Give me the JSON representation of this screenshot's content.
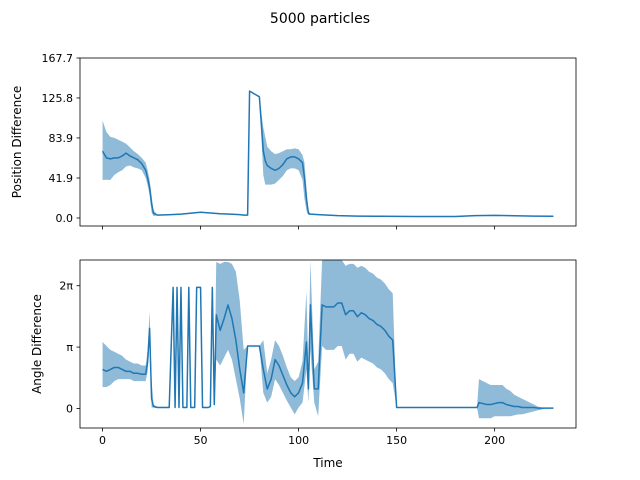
{
  "title": "5000 particles",
  "colors": {
    "line": "#1f77b4",
    "band": "#1f77b4",
    "axes": "#000000"
  },
  "chart_data": [
    {
      "type": "line",
      "name": "position-difference-plot",
      "xlabel": "",
      "ylabel": "Position Difference",
      "xlim": [
        -11.5,
        241.5
      ],
      "ylim": [
        -8.4,
        167.7
      ],
      "x_ticks": [
        0,
        50,
        100,
        150,
        200
      ],
      "y_ticks": [
        0.0,
        41.9,
        83.9,
        125.8,
        167.7
      ],
      "y_tick_labels": [
        "0.0",
        "41.9",
        "83.9",
        "125.8",
        "167.7"
      ],
      "show_x_tick_labels": false,
      "series": [
        {
          "x": [
            0,
            2,
            4,
            6,
            8,
            10,
            12,
            14,
            16,
            18,
            20,
            22,
            23,
            24,
            25,
            26,
            28,
            35,
            40,
            50,
            60,
            65,
            70,
            72,
            74,
            75,
            80,
            82,
            83,
            84,
            86,
            88,
            90,
            92,
            94,
            96,
            98,
            100,
            102,
            103,
            104,
            105,
            106,
            110,
            120,
            130,
            140,
            150,
            160,
            170,
            180,
            190,
            200,
            210,
            220,
            230
          ],
          "y": [
            70,
            63,
            62,
            63,
            63,
            65,
            68,
            65,
            63,
            61,
            57,
            50,
            42,
            32,
            15,
            5,
            3,
            3.5,
            4,
            6,
            4.5,
            4,
            3.5,
            3,
            3,
            133,
            127,
            70,
            60,
            55,
            52,
            50,
            52,
            56,
            62,
            64,
            64,
            62,
            58,
            42,
            20,
            5,
            4,
            3.5,
            2.5,
            2,
            1.8,
            1.7,
            1.6,
            1.5,
            1.5,
            2.5,
            2.8,
            2.3,
            2,
            1.8
          ],
          "lower": [
            40,
            40,
            40,
            45,
            48,
            50,
            54,
            55,
            53,
            52,
            50,
            42,
            34,
            24,
            6,
            2,
            2.8,
            3.2,
            3.7,
            5.6,
            4.2,
            3.8,
            3.3,
            2.8,
            2.8,
            133,
            127,
            45,
            35,
            35,
            35,
            36,
            40,
            44,
            50,
            52,
            52,
            50,
            40,
            20,
            8,
            3,
            3.5,
            3.2,
            2.2,
            1.7,
            1.5,
            1.4,
            1.3,
            1.2,
            1.2,
            2.1,
            2.4,
            2,
            1.7,
            1.5
          ],
          "upper": [
            102,
            90,
            85,
            84,
            82,
            80,
            78,
            74,
            70,
            67,
            63,
            58,
            50,
            40,
            24,
            8,
            3.2,
            3.8,
            4.3,
            6.4,
            4.8,
            4.2,
            3.7,
            3.2,
            3.2,
            133,
            127,
            95,
            85,
            75,
            70,
            67,
            68,
            70,
            72,
            72,
            73,
            72,
            66,
            58,
            32,
            8,
            4.5,
            3.8,
            2.8,
            2.3,
            2.1,
            2,
            1.9,
            1.8,
            1.8,
            2.9,
            3.2,
            2.6,
            2.3,
            2.1
          ]
        }
      ]
    },
    {
      "type": "line",
      "name": "angle-difference-plot",
      "xlabel": "Time",
      "ylabel": "Angle Difference",
      "xlim": [
        -11.5,
        241.5
      ],
      "ylim": [
        -1.0,
        7.6
      ],
      "x_ticks": [
        0,
        50,
        100,
        150,
        200
      ],
      "x_tick_labels": [
        "0",
        "50",
        "100",
        "150",
        "200"
      ],
      "y_ticks": [
        0,
        3.14159,
        6.28318
      ],
      "y_tick_labels": [
        "0",
        "π",
        "2π"
      ],
      "show_x_tick_labels": true,
      "series": [
        {
          "x": [
            0,
            2,
            4,
            6,
            8,
            10,
            12,
            14,
            16,
            18,
            20,
            22,
            23,
            24,
            25,
            26,
            28,
            30,
            34,
            36,
            37,
            38,
            39,
            40,
            41,
            42,
            43,
            44,
            45,
            46,
            47,
            48,
            49,
            50,
            51,
            52,
            53,
            54,
            55,
            56,
            57,
            58,
            60,
            62,
            64,
            66,
            68,
            70,
            72,
            74,
            76,
            78,
            80,
            82,
            84,
            86,
            88,
            90,
            92,
            94,
            96,
            98,
            100,
            102,
            104,
            105,
            106,
            108,
            110,
            112,
            114,
            116,
            118,
            120,
            122,
            124,
            126,
            128,
            130,
            132,
            134,
            136,
            138,
            140,
            142,
            144,
            146,
            148,
            150,
            160,
            170,
            180,
            190,
            191,
            192,
            194,
            196,
            198,
            200,
            202,
            204,
            206,
            208,
            210,
            212,
            214,
            216,
            218,
            220,
            222,
            224,
            226,
            228,
            230
          ],
          "y": [
            2.0,
            1.9,
            2.0,
            2.1,
            2.1,
            2.0,
            1.9,
            1.9,
            1.8,
            1.8,
            1.75,
            1.75,
            2.4,
            4.1,
            0.5,
            0.1,
            0.05,
            0.05,
            0.05,
            6.2,
            0.05,
            6.2,
            0.05,
            6.2,
            0.05,
            0.05,
            0.05,
            6.2,
            0.05,
            0.05,
            0.05,
            6.2,
            6.2,
            6.2,
            0.05,
            0.05,
            0.05,
            0.05,
            0.1,
            6.2,
            0.2,
            4.8,
            4.0,
            4.6,
            5.3,
            4.6,
            3.5,
            2.0,
            0.8,
            3.2,
            3.2,
            3.2,
            3.2,
            2.0,
            1.0,
            1.5,
            2.5,
            2.2,
            1.7,
            1.2,
            0.8,
            0.6,
            0.8,
            1.3,
            3.4,
            1.0,
            5.3,
            1.0,
            1.0,
            5.3,
            5.2,
            5.2,
            5.2,
            5.4,
            5.4,
            4.8,
            5.0,
            5.0,
            4.7,
            4.9,
            4.8,
            4.6,
            4.5,
            4.3,
            4.2,
            4.0,
            3.7,
            3.5,
            0.05,
            0.05,
            0.05,
            0.05,
            0.05,
            0.05,
            0.3,
            0.25,
            0.2,
            0.2,
            0.25,
            0.3,
            0.3,
            0.2,
            0.15,
            0.1,
            0.1,
            0.05,
            0.05,
            0.05,
            0.05,
            0.02,
            0.02,
            0.02,
            0.02,
            0.02
          ],
          "lower": [
            1.1,
            1.1,
            1.2,
            1.4,
            1.5,
            1.5,
            1.5,
            1.5,
            1.4,
            1.4,
            1.4,
            1.4,
            1.9,
            3.5,
            0.05,
            0.05,
            0.03,
            0.03,
            0.03,
            6.2,
            0.03,
            6.2,
            0.03,
            6.2,
            0.03,
            0.03,
            0.03,
            6.2,
            0.03,
            0.03,
            0.03,
            6.2,
            6.2,
            6.2,
            0.03,
            0.03,
            0.03,
            0.03,
            0.05,
            6.2,
            0.1,
            2.5,
            2.2,
            2.6,
            3.0,
            2.5,
            1.5,
            0.5,
            -0.8,
            3.2,
            3.2,
            3.2,
            3.2,
            0.8,
            0.3,
            0.6,
            1.5,
            1.2,
            0.8,
            0.4,
            0.05,
            -0.3,
            0.05,
            0.3,
            2.0,
            0.3,
            3.0,
            0.3,
            -0.4,
            3.2,
            3.0,
            3.0,
            3.0,
            3.2,
            3.2,
            2.5,
            2.8,
            2.8,
            2.4,
            2.6,
            2.5,
            2.4,
            2.3,
            2.1,
            2.0,
            1.8,
            1.5,
            1.3,
            0.05,
            0.05,
            0.05,
            0.05,
            0.05,
            0.05,
            -0.5,
            -0.5,
            -0.5,
            -0.5,
            -0.4,
            -0.4,
            -0.4,
            -0.4,
            -0.4,
            -0.35,
            -0.3,
            -0.3,
            -0.25,
            -0.2,
            -0.15,
            -0.1,
            -0.05,
            0.0,
            0.0,
            0.0
          ],
          "upper": [
            3.4,
            3.2,
            3.0,
            2.9,
            2.8,
            2.7,
            2.5,
            2.4,
            2.3,
            2.3,
            2.2,
            2.2,
            3.0,
            5.0,
            1.5,
            0.2,
            0.08,
            0.08,
            0.08,
            6.2,
            0.08,
            6.2,
            0.08,
            6.2,
            0.08,
            0.08,
            0.08,
            6.2,
            0.08,
            0.08,
            0.08,
            6.2,
            6.2,
            6.2,
            0.08,
            0.08,
            0.08,
            0.08,
            0.2,
            6.2,
            0.4,
            7.5,
            7.4,
            7.5,
            7.5,
            7.4,
            7.0,
            5.5,
            3.0,
            3.2,
            3.2,
            3.2,
            3.2,
            3.5,
            1.8,
            2.5,
            3.5,
            3.2,
            2.7,
            2.1,
            1.6,
            1.4,
            1.6,
            2.4,
            6.0,
            2.0,
            7.6,
            2.0,
            2.4,
            7.6,
            7.6,
            7.6,
            7.6,
            7.6,
            7.6,
            7.3,
            7.4,
            7.4,
            7.2,
            7.3,
            7.2,
            7.0,
            6.9,
            6.7,
            6.6,
            6.4,
            6.1,
            5.9,
            0.05,
            0.05,
            0.05,
            0.05,
            0.05,
            0.05,
            1.5,
            1.4,
            1.3,
            1.2,
            1.2,
            1.2,
            1.2,
            1.0,
            0.9,
            0.7,
            0.6,
            0.5,
            0.4,
            0.3,
            0.2,
            0.1,
            0.05,
            0.04,
            0.04,
            0.04
          ]
        }
      ]
    }
  ]
}
